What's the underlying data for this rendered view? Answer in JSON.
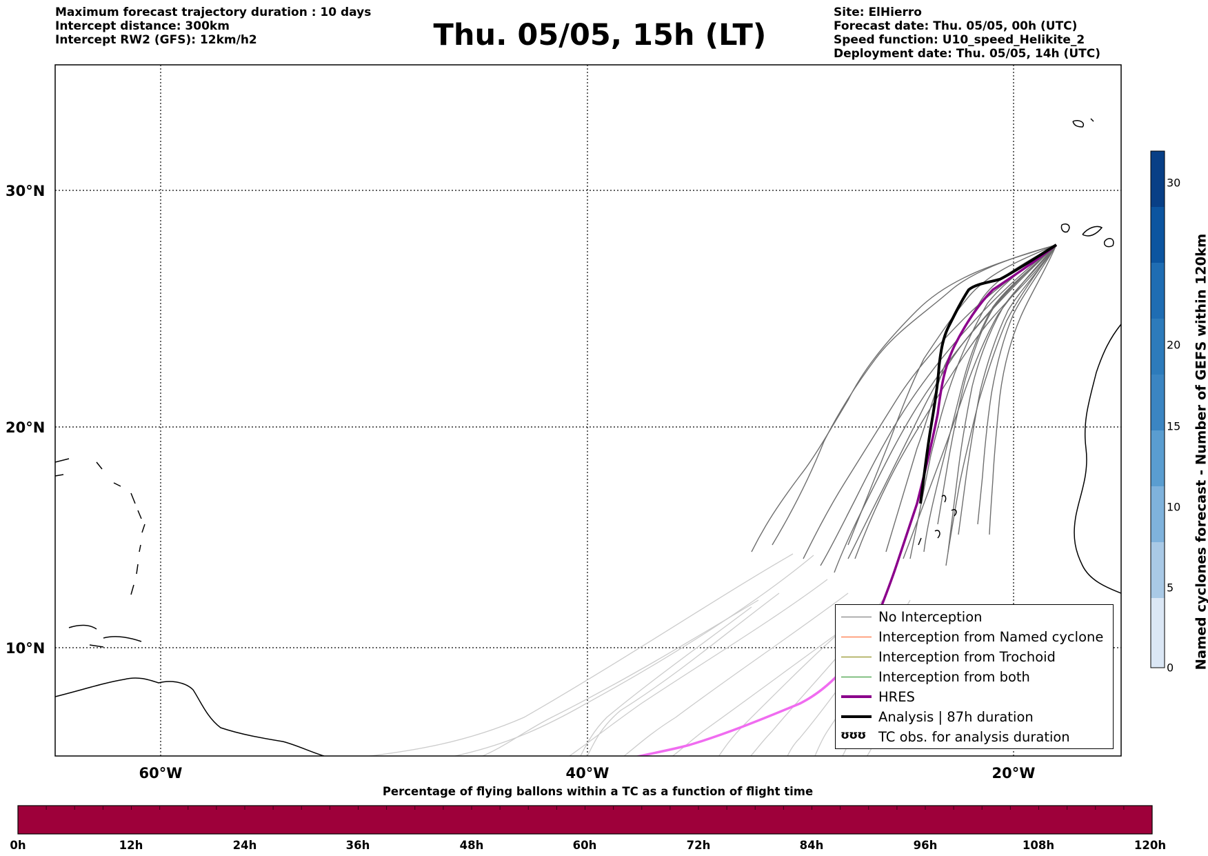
{
  "header": {
    "left_lines": [
      "Maximum forecast trajectory duration : 10 days",
      "Intercept distance: 300km",
      "Intercept RW2 (GFS):  12km/h2"
    ],
    "title": "Thu. 05/05, 15h (LT)",
    "right_lines": [
      "Site: ElHierro",
      "Forecast date: Thu. 05/05, 00h (UTC)",
      "Speed function: U10_speed_Helikite_2",
      "Deployment date: Thu. 05/05, 14h (UTC)"
    ]
  },
  "map": {
    "lat_labels": [
      "30°N",
      "20°N",
      "10°N"
    ],
    "lon_labels": [
      "60°W",
      "40°W",
      "20°W"
    ],
    "gridlines": "dotted",
    "colors": {
      "no_interception": "#6e6e6e",
      "faded_tracks": "#c8c8c8",
      "named_cyclone": "#ff5a1e",
      "trochoid": "#808000",
      "both": "#1e8c1e",
      "hres": "#8b008b",
      "hres_faded": "#f06cf0",
      "analysis": "#000000"
    }
  },
  "legend": {
    "items": [
      {
        "label": "No Interception",
        "style": "thin-gray"
      },
      {
        "label": "Interception from Named cyclone",
        "style": "thin-orange"
      },
      {
        "label": "Interception from Trochoid",
        "style": "thin-olive"
      },
      {
        "label": "Interception from both",
        "style": "thin-green"
      },
      {
        "label": "HRES",
        "style": "thick-purple"
      },
      {
        "label": "Analysis | 87h duration",
        "style": "thick-black"
      },
      {
        "label": "TC obs. for analysis duration",
        "style": "cyclone-symbols",
        "symbol": "ʊʊʊ"
      }
    ]
  },
  "colorbar_vertical": {
    "label": "Named cyclones forecast - Number of GEFS within 120km",
    "ticks": [
      "0",
      "5",
      "10",
      "15",
      "20",
      "30"
    ],
    "colors": [
      "#dbe7f5",
      "#c5d9ee",
      "#a9c9e6",
      "#7fb2dc",
      "#5a9dd0",
      "#3b85c2",
      "#1f6db3",
      "#0c55a0",
      "#083f86"
    ]
  },
  "colorbar_horizontal": {
    "title": "Percentage of flying ballons within a TC as a function of flight time",
    "ticks": [
      "0h",
      "12h",
      "24h",
      "36h",
      "48h",
      "60h",
      "72h",
      "84h",
      "96h",
      "108h",
      "120h"
    ],
    "color": "#9e003a"
  }
}
